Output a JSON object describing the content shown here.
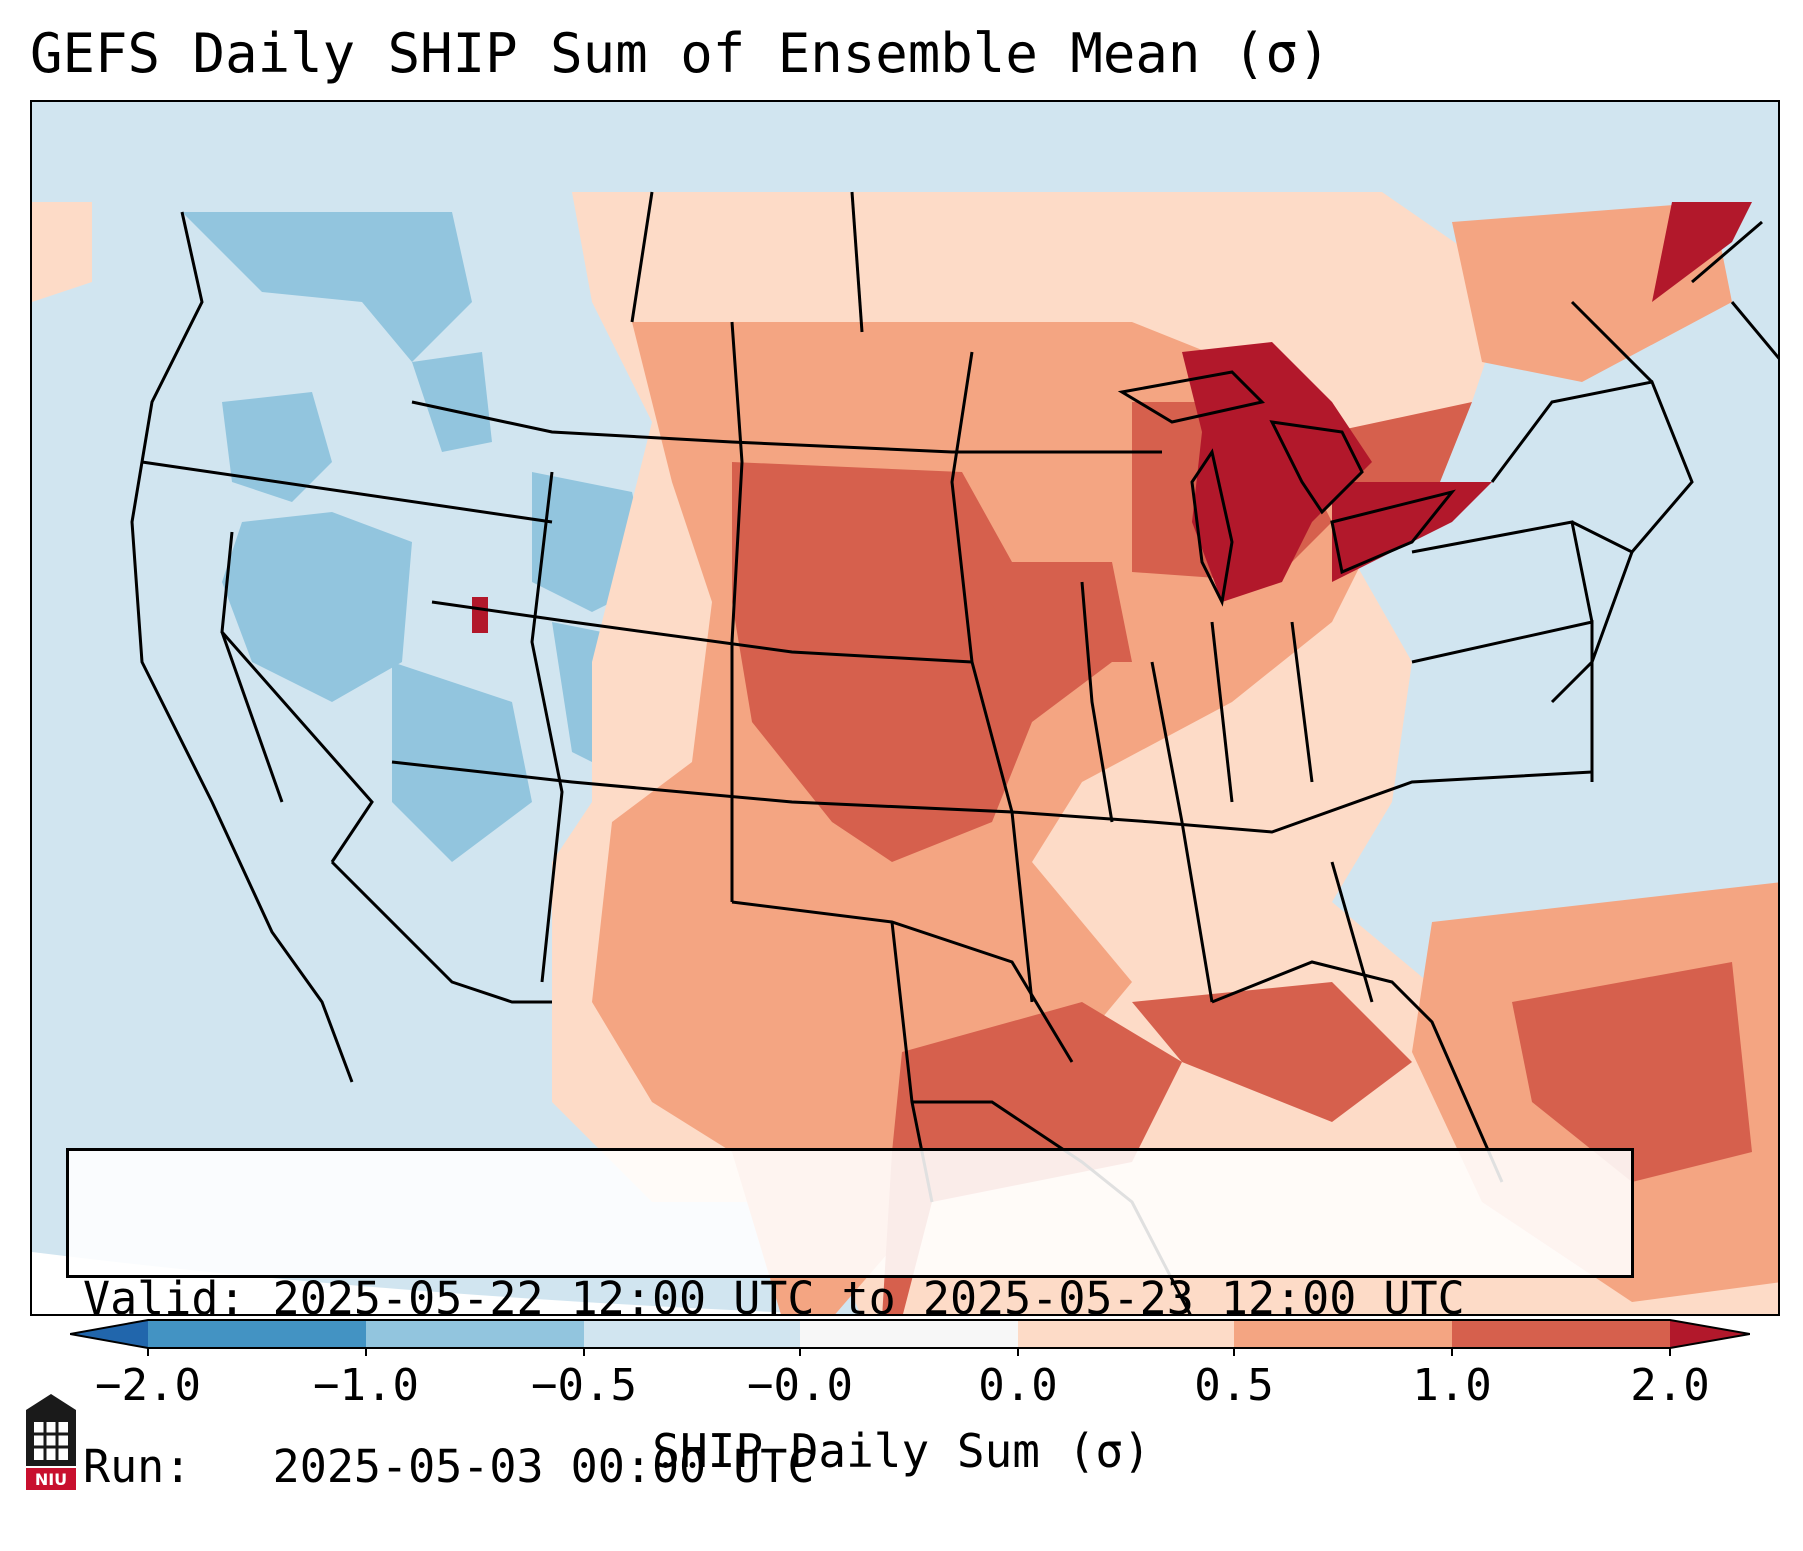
{
  "title": "GEFS Daily SHIP Sum of Ensemble Mean (σ)",
  "info": {
    "valid_line": "Valid: 2025-05-22 12:00 UTC to 2025-05-23 12:00 UTC",
    "run_line": "Run:   2025-05-03 00:00 UTC"
  },
  "colorbar": {
    "label": "SHIP Daily Sum (σ)",
    "ticks": [
      "−2.0",
      "−1.0",
      "−0.5",
      "−0.0",
      "0.0",
      "0.5",
      "1.0",
      "2.0"
    ],
    "colors": {
      "below_min": "#2166ac",
      "bin_neg2_neg1": "#4393c3",
      "bin_neg1_neg05": "#92c5de",
      "bin_neg05_0": "#d1e5f0",
      "bin_0_0": "#f7f7f7",
      "bin_0_05": "#fddbc7",
      "bin_05_1": "#f4a582",
      "bin_1_2": "#d6604d",
      "above_max": "#b2182b"
    }
  },
  "logo": {
    "text": "NIU",
    "icon": "niu-logo-icon"
  }
}
